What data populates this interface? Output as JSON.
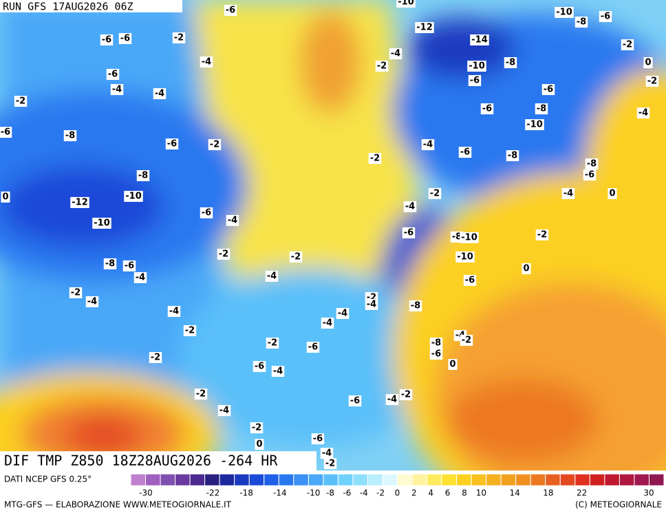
{
  "run_title": "RUN GFS 17AUG2026 06Z",
  "map_title": "DIF TMP Z850 18Z28AUG2026 -264 HR",
  "source": "DATI NCEP GFS 0.25°",
  "credit_left": "MTG-GFS — ELABORAZIONE WWW.METEOGIORNALE.IT",
  "credit_right": "(C) METEOGIORNALE",
  "contour_labels": [
    -6,
    -10,
    -10,
    -8,
    -6,
    -6,
    -6,
    -2,
    -12,
    -14,
    -2,
    -4,
    -4,
    -2,
    -8,
    -10,
    0,
    -6,
    -6,
    -2,
    -4,
    -4,
    -6,
    -2,
    -6,
    -8,
    -4,
    -10,
    -6,
    -8,
    -4,
    -6,
    -2,
    -6,
    -8,
    -2,
    -8,
    -6,
    -8,
    -2,
    -4,
    0,
    0,
    -10,
    -12,
    -4,
    -6,
    -4,
    -10,
    -6,
    -8,
    -10,
    -2,
    -2,
    -2,
    -10,
    -8,
    -6,
    0,
    -4,
    -4,
    -6,
    -2,
    -4,
    -2,
    -4,
    -8,
    -4,
    -4,
    -4,
    -2,
    -4,
    -2,
    -8,
    -2,
    -6,
    -6,
    -2,
    0,
    -6,
    -4,
    -2,
    -2,
    -4,
    -6,
    -4,
    -2,
    0,
    -6,
    -4,
    -2
  ],
  "colorbar": {
    "range": [
      -31.8,
      31.8
    ],
    "ticks": [
      -30,
      -22,
      -18,
      -14,
      -10,
      -8,
      -6,
      -4,
      -2,
      0,
      2,
      4,
      6,
      8,
      10,
      14,
      18,
      22,
      30
    ],
    "colors": [
      "#c080d0",
      "#a060c0",
      "#8050b0",
      "#6a3aa0",
      "#4a2a90",
      "#2a2080",
      "#1c2aa0",
      "#1a3ac0",
      "#1c4ad8",
      "#2060e8",
      "#2a78f0",
      "#3a90f5",
      "#4aa8f8",
      "#5ac0fa",
      "#70d2fc",
      "#90e0fc",
      "#b8eefd",
      "#dcf8fe",
      "#fffbd0",
      "#fff3a0",
      "#ffeb60",
      "#fde030",
      "#fbd020",
      "#f8c020",
      "#f5b020",
      "#f2a020",
      "#f09020",
      "#ec7820",
      "#e86020",
      "#e44820",
      "#e03020",
      "#d02020",
      "#c01830",
      "#b01840",
      "#a01850",
      "#901850"
    ]
  }
}
